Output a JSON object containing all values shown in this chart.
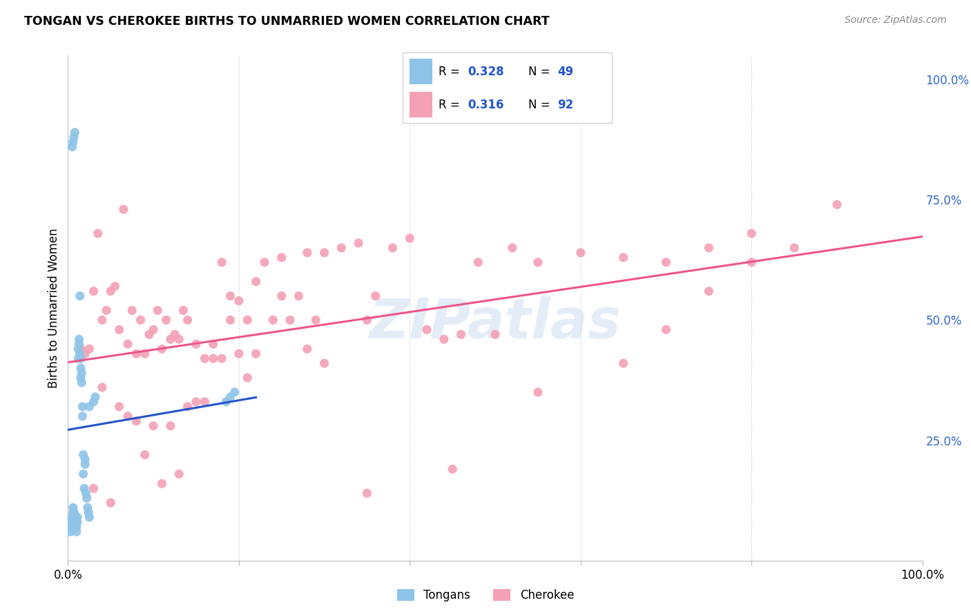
{
  "title": "TONGAN VS CHEROKEE BIRTHS TO UNMARRIED WOMEN CORRELATION CHART",
  "source": "Source: ZipAtlas.com",
  "ylabel": "Births to Unmarried Women",
  "tongan_color": "#8EC4E8",
  "cherokee_color": "#F4A0B5",
  "tongan_line_color": "#2255CC",
  "cherokee_line_color": "#EE5588",
  "tongan_dash_color": "#AACCEE",
  "legend_text_color": "#2255CC",
  "right_tick_color": "#3366CC",
  "watermark_color": "#C5D8EE",
  "grid_color": "#DDDDDD",
  "tongan_R": "0.328",
  "tongan_N": "49",
  "cherokee_R": "0.316",
  "cherokee_N": "92",
  "tongan_x": [
    0.003,
    0.004,
    0.005,
    0.005,
    0.006,
    0.006,
    0.007,
    0.007,
    0.008,
    0.008,
    0.009,
    0.009,
    0.01,
    0.01,
    0.011,
    0.011,
    0.012,
    0.012,
    0.013,
    0.013,
    0.014,
    0.014,
    0.015,
    0.015,
    0.015,
    0.016,
    0.016,
    0.017,
    0.017,
    0.018,
    0.018,
    0.019,
    0.02,
    0.02,
    0.021,
    0.022,
    0.023,
    0.024,
    0.025,
    0.025,
    0.03,
    0.032,
    0.185,
    0.19,
    0.195,
    0.005,
    0.006,
    0.007,
    0.008
  ],
  "tongan_y": [
    0.06,
    0.07,
    0.08,
    0.09,
    0.1,
    0.11,
    0.09,
    0.1,
    0.08,
    0.09,
    0.07,
    0.08,
    0.06,
    0.07,
    0.08,
    0.09,
    0.42,
    0.44,
    0.45,
    0.46,
    0.43,
    0.55,
    0.38,
    0.4,
    0.42,
    0.37,
    0.39,
    0.3,
    0.32,
    0.22,
    0.18,
    0.15,
    0.2,
    0.21,
    0.14,
    0.13,
    0.11,
    0.1,
    0.09,
    0.32,
    0.33,
    0.34,
    0.33,
    0.34,
    0.35,
    0.86,
    0.87,
    0.88,
    0.89
  ],
  "cherokee_x": [
    0.015,
    0.02,
    0.025,
    0.03,
    0.035,
    0.04,
    0.045,
    0.05,
    0.055,
    0.06,
    0.065,
    0.07,
    0.075,
    0.08,
    0.085,
    0.09,
    0.095,
    0.1,
    0.105,
    0.11,
    0.115,
    0.12,
    0.125,
    0.13,
    0.135,
    0.14,
    0.15,
    0.16,
    0.17,
    0.18,
    0.19,
    0.2,
    0.21,
    0.22,
    0.23,
    0.24,
    0.25,
    0.26,
    0.27,
    0.28,
    0.29,
    0.3,
    0.32,
    0.34,
    0.35,
    0.36,
    0.38,
    0.4,
    0.42,
    0.44,
    0.46,
    0.48,
    0.5,
    0.52,
    0.55,
    0.6,
    0.65,
    0.7,
    0.75,
    0.8,
    0.85,
    0.9,
    0.04,
    0.06,
    0.08,
    0.1,
    0.12,
    0.14,
    0.16,
    0.18,
    0.2,
    0.22,
    0.25,
    0.28,
    0.3,
    0.03,
    0.05,
    0.07,
    0.09,
    0.11,
    0.13,
    0.15,
    0.17,
    0.19,
    0.21,
    0.35,
    0.45,
    0.55,
    0.65,
    0.7,
    0.75,
    0.8
  ],
  "cherokee_y": [
    0.44,
    0.43,
    0.44,
    0.56,
    0.68,
    0.5,
    0.52,
    0.56,
    0.57,
    0.48,
    0.73,
    0.45,
    0.52,
    0.43,
    0.5,
    0.43,
    0.47,
    0.48,
    0.52,
    0.44,
    0.5,
    0.46,
    0.47,
    0.46,
    0.52,
    0.5,
    0.45,
    0.42,
    0.45,
    0.42,
    0.55,
    0.43,
    0.5,
    0.58,
    0.62,
    0.5,
    0.63,
    0.5,
    0.55,
    0.64,
    0.5,
    0.64,
    0.65,
    0.66,
    0.5,
    0.55,
    0.65,
    0.67,
    0.48,
    0.46,
    0.47,
    0.62,
    0.47,
    0.65,
    0.62,
    0.64,
    0.63,
    0.62,
    0.65,
    0.68,
    0.65,
    0.74,
    0.36,
    0.32,
    0.29,
    0.28,
    0.28,
    0.32,
    0.33,
    0.62,
    0.54,
    0.43,
    0.55,
    0.44,
    0.41,
    0.15,
    0.12,
    0.3,
    0.22,
    0.16,
    0.18,
    0.33,
    0.42,
    0.5,
    0.38,
    0.14,
    0.19,
    0.35,
    0.41,
    0.48,
    0.56,
    0.62
  ],
  "xlim": [
    0.0,
    1.0
  ],
  "ylim": [
    0.0,
    1.05
  ],
  "x_ticks": [
    0.0,
    0.2,
    0.4,
    0.6,
    0.8,
    1.0
  ],
  "x_tick_labels": [
    "0.0%",
    "",
    "",
    "",
    "",
    "100.0%"
  ],
  "y_ticks": [
    0.25,
    0.5,
    0.75,
    1.0
  ],
  "y_tick_labels": [
    "25.0%",
    "50.0%",
    "75.0%",
    "100.0%"
  ]
}
